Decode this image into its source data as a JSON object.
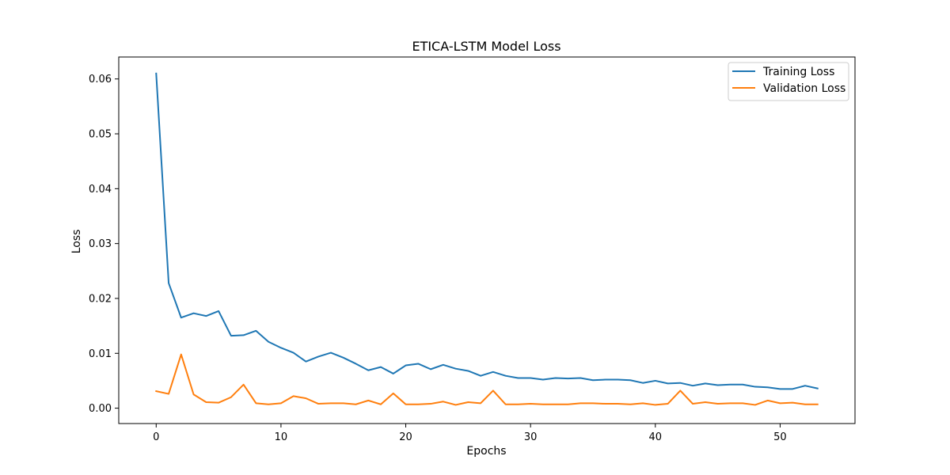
{
  "chart_data": {
    "type": "line",
    "title": "ETICA-LSTM Model Loss",
    "xlabel": "Epochs",
    "ylabel": "Loss",
    "xlim": [
      -3.0,
      56.0
    ],
    "ylim": [
      -0.0028,
      0.064
    ],
    "xticks": [
      0,
      10,
      20,
      30,
      40,
      50
    ],
    "yticks": [
      0.0,
      0.01,
      0.02,
      0.03,
      0.04,
      0.05,
      0.06
    ],
    "ytick_labels": [
      "0.00",
      "0.01",
      "0.02",
      "0.03",
      "0.04",
      "0.05",
      "0.06"
    ],
    "grid": false,
    "legend": {
      "placement": "top-right"
    },
    "x": [
      0,
      1,
      2,
      3,
      4,
      5,
      6,
      7,
      8,
      9,
      10,
      11,
      12,
      13,
      14,
      15,
      16,
      17,
      18,
      19,
      20,
      21,
      22,
      23,
      24,
      25,
      26,
      27,
      28,
      29,
      30,
      31,
      32,
      33,
      34,
      35,
      36,
      37,
      38,
      39,
      40,
      41,
      42,
      43,
      44,
      45,
      46,
      47,
      48,
      49,
      50,
      51,
      52,
      53
    ],
    "series": [
      {
        "name": "Training Loss",
        "color": "#1f77b4",
        "values": [
          0.061,
          0.0228,
          0.0165,
          0.0173,
          0.0168,
          0.0177,
          0.0132,
          0.0133,
          0.0141,
          0.0121,
          0.011,
          0.0101,
          0.0085,
          0.0094,
          0.0101,
          0.0092,
          0.0081,
          0.0069,
          0.0075,
          0.0063,
          0.0078,
          0.0081,
          0.0071,
          0.0079,
          0.0072,
          0.0068,
          0.0059,
          0.0066,
          0.0059,
          0.0055,
          0.0055,
          0.0052,
          0.0055,
          0.0054,
          0.0055,
          0.0051,
          0.0052,
          0.0052,
          0.0051,
          0.0046,
          0.005,
          0.0045,
          0.0046,
          0.0041,
          0.0045,
          0.0042,
          0.0043,
          0.0043,
          0.0039,
          0.0038,
          0.0035,
          0.0035,
          0.0041,
          0.0036
        ]
      },
      {
        "name": "Validation Loss",
        "color": "#ff7f0e",
        "values": [
          0.0031,
          0.0026,
          0.0098,
          0.0025,
          0.0011,
          0.001,
          0.002,
          0.0043,
          0.0009,
          0.0007,
          0.0009,
          0.0022,
          0.0018,
          0.0008,
          0.0009,
          0.0009,
          0.0007,
          0.0014,
          0.0007,
          0.0027,
          0.0007,
          0.0007,
          0.0008,
          0.0012,
          0.0006,
          0.0011,
          0.0009,
          0.0032,
          0.0007,
          0.0007,
          0.0008,
          0.0007,
          0.0007,
          0.0007,
          0.0009,
          0.0009,
          0.0008,
          0.0008,
          0.0007,
          0.0009,
          0.0006,
          0.0008,
          0.0032,
          0.0008,
          0.0011,
          0.0008,
          0.0009,
          0.0009,
          0.0006,
          0.0014,
          0.0009,
          0.001,
          0.0007,
          0.0007
        ]
      }
    ]
  }
}
